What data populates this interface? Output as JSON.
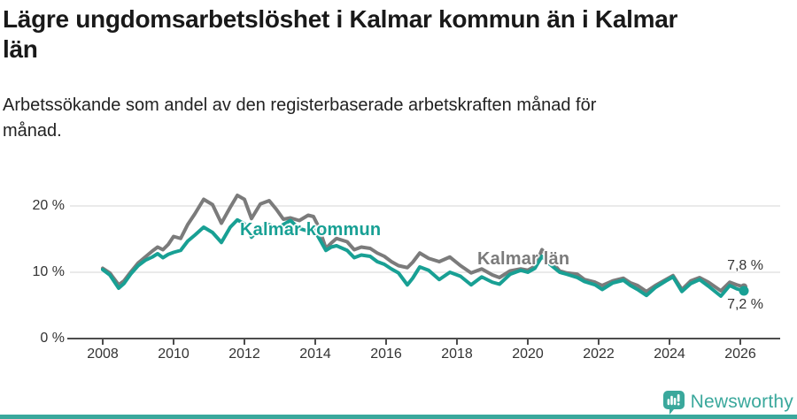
{
  "header": {
    "title_lines": [
      "Lägre ungdomsarbetslöshet i Kalmar kommun än i Kalmar",
      "län"
    ],
    "subtitle_lines": [
      "Arbetssökande som andel av den registerbaserade arbetskraften månad för",
      "månad."
    ]
  },
  "chart_data": {
    "type": "line",
    "x_unit": "decimal_year",
    "x": [
      2008.0,
      2008.2,
      2008.45,
      2008.6,
      2008.8,
      2009.0,
      2009.2,
      2009.4,
      2009.55,
      2009.7,
      2009.85,
      2010.0,
      2010.2,
      2010.4,
      2010.6,
      2010.85,
      2011.1,
      2011.35,
      2011.6,
      2011.8,
      2012.0,
      2012.2,
      2012.45,
      2012.7,
      2012.9,
      2013.1,
      2013.3,
      2013.55,
      2013.8,
      2013.95,
      2014.1,
      2014.3,
      2014.45,
      2014.6,
      2014.9,
      2015.1,
      2015.3,
      2015.55,
      2015.75,
      2015.95,
      2016.15,
      2016.35,
      2016.6,
      2016.75,
      2016.95,
      2017.2,
      2017.5,
      2017.8,
      2018.1,
      2018.4,
      2018.7,
      2019.0,
      2019.2,
      2019.5,
      2019.8,
      2020.0,
      2020.2,
      2020.4,
      2020.6,
      2020.9,
      2021.1,
      2021.4,
      2021.6,
      2021.9,
      2022.1,
      2022.4,
      2022.7,
      2022.9,
      2023.1,
      2023.35,
      2023.6,
      2023.9,
      2024.1,
      2024.35,
      2024.6,
      2024.85,
      2025.1,
      2025.45,
      2025.7,
      2025.9,
      2026.1
    ],
    "series": [
      {
        "name": "Kalmar län",
        "color": "#7b7b7b",
        "values": [
          10.6,
          9.9,
          8.1,
          8.7,
          10.1,
          11.4,
          12.3,
          13.2,
          13.8,
          13.4,
          14.2,
          15.4,
          15.1,
          17.2,
          18.8,
          21.0,
          20.2,
          17.4,
          19.8,
          21.6,
          21.0,
          18.1,
          20.3,
          20.8,
          19.5,
          18.0,
          18.2,
          17.8,
          18.6,
          18.4,
          16.8,
          13.6,
          14.4,
          15.1,
          14.6,
          13.4,
          13.8,
          13.6,
          12.9,
          12.4,
          11.6,
          11.0,
          10.7,
          11.5,
          12.9,
          12.1,
          11.6,
          12.3,
          11.0,
          9.9,
          10.5,
          9.6,
          9.2,
          10.2,
          10.5,
          10.3,
          10.9,
          13.4,
          12.1,
          10.2,
          9.9,
          9.7,
          8.9,
          8.5,
          8.0,
          8.7,
          9.1,
          8.4,
          8.0,
          7.1,
          8.0,
          8.9,
          9.5,
          7.4,
          8.7,
          9.2,
          8.5,
          7.2,
          8.5,
          8.1,
          7.8
        ]
      },
      {
        "name": "Kalmar kommun",
        "color": "#18a094",
        "values": [
          10.4,
          9.6,
          7.6,
          8.3,
          9.8,
          11.0,
          11.8,
          12.3,
          12.8,
          12.2,
          12.7,
          13.0,
          13.3,
          14.7,
          15.6,
          16.8,
          16.0,
          14.5,
          16.8,
          17.9,
          17.3,
          15.3,
          16.6,
          17.2,
          16.4,
          17.2,
          17.8,
          16.6,
          16.2,
          16.6,
          15.2,
          13.3,
          13.8,
          14.0,
          13.3,
          12.2,
          12.6,
          12.4,
          11.6,
          11.2,
          10.5,
          9.9,
          8.1,
          9.1,
          10.8,
          10.3,
          8.9,
          10.0,
          9.4,
          8.1,
          9.3,
          8.5,
          8.2,
          9.7,
          10.3,
          10.0,
          10.6,
          12.4,
          11.3,
          10.0,
          9.7,
          9.2,
          8.6,
          8.1,
          7.4,
          8.4,
          8.8,
          8.0,
          7.4,
          6.5,
          7.7,
          8.7,
          9.3,
          7.1,
          8.3,
          8.9,
          7.9,
          6.4,
          8.0,
          7.5,
          7.2
        ]
      }
    ],
    "x_ticks": [
      "2008",
      "2010",
      "2012",
      "2014",
      "2016",
      "2018",
      "2020",
      "2022",
      "2024",
      "2026"
    ],
    "y_ticks": [
      {
        "value": 0,
        "label": "0 %"
      },
      {
        "value": 10,
        "label": "10 %"
      },
      {
        "value": 20,
        "label": "20 %"
      }
    ],
    "xlim": [
      2007.9,
      2027.1
    ],
    "ylim": [
      0,
      22.5
    ],
    "grid": "horizontal",
    "legend_position": "inline-labels",
    "end_labels": {
      "lan": "7,8 %",
      "kommun": "7,2 %"
    }
  },
  "colors": {
    "grid": "#e4e4e4",
    "axis": "#4d4d4d",
    "brand_teal": "#3aa89c"
  },
  "footer": {
    "brand": "Newsworthy"
  }
}
